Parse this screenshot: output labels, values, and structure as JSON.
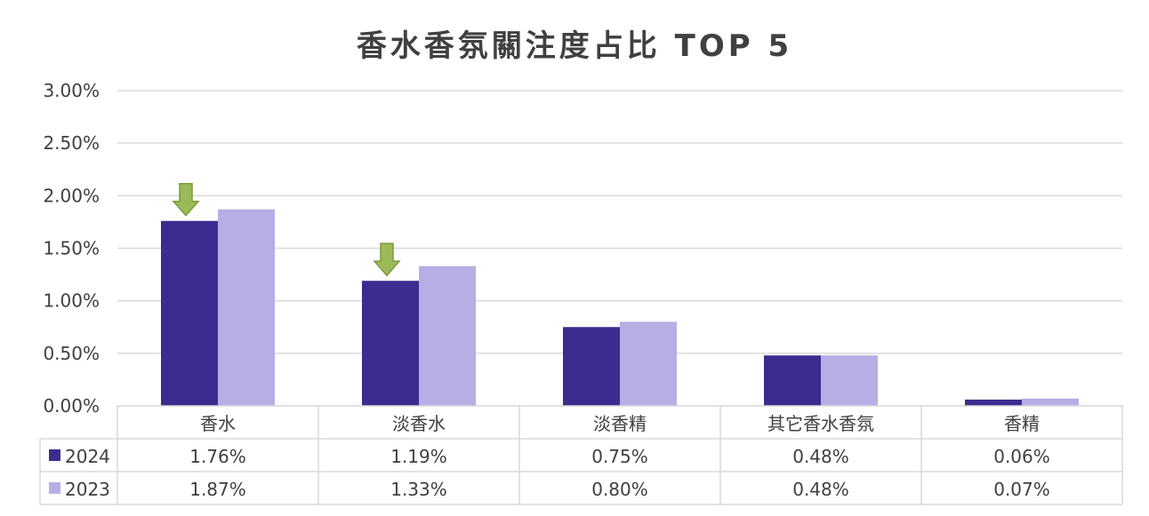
{
  "chart_data": {
    "type": "bar",
    "title": "香水香氛關注度占比 TOP 5",
    "categories": [
      "香水",
      "淡香水",
      "淡香精",
      "其它香水香氛",
      "香精"
    ],
    "series": [
      {
        "name": "2024",
        "values": [
          1.76,
          1.19,
          0.75,
          0.48,
          0.06
        ],
        "labels": [
          "1.76%",
          "1.19%",
          "0.75%",
          "0.48%",
          "0.06%"
        ],
        "color": "#3d2c8f"
      },
      {
        "name": "2023",
        "values": [
          1.87,
          1.33,
          0.8,
          0.48,
          0.07
        ],
        "labels": [
          "1.87%",
          "1.33%",
          "0.80%",
          "0.48%",
          "0.07%"
        ],
        "color": "#b6aee4"
      }
    ],
    "ylim": [
      0,
      3.0
    ],
    "yticks": [
      0,
      0.5,
      1.0,
      1.5,
      2.0,
      2.5,
      3.0
    ],
    "ytick_labels": [
      "0.00%",
      "0.50%",
      "1.00%",
      "1.50%",
      "2.00%",
      "2.50%",
      "3.00%"
    ],
    "grid": true,
    "legend": "data-table",
    "annotations": [
      {
        "type": "down-arrow",
        "category": "香水",
        "series": "2024",
        "color": "#9bbb59"
      },
      {
        "type": "down-arrow",
        "category": "淡香水",
        "series": "2024",
        "color": "#9bbb59"
      }
    ],
    "colors": {
      "grid": "#d9d9d9",
      "arrow_fill": "#9bbb59",
      "arrow_stroke": "#7a9a3c"
    }
  }
}
